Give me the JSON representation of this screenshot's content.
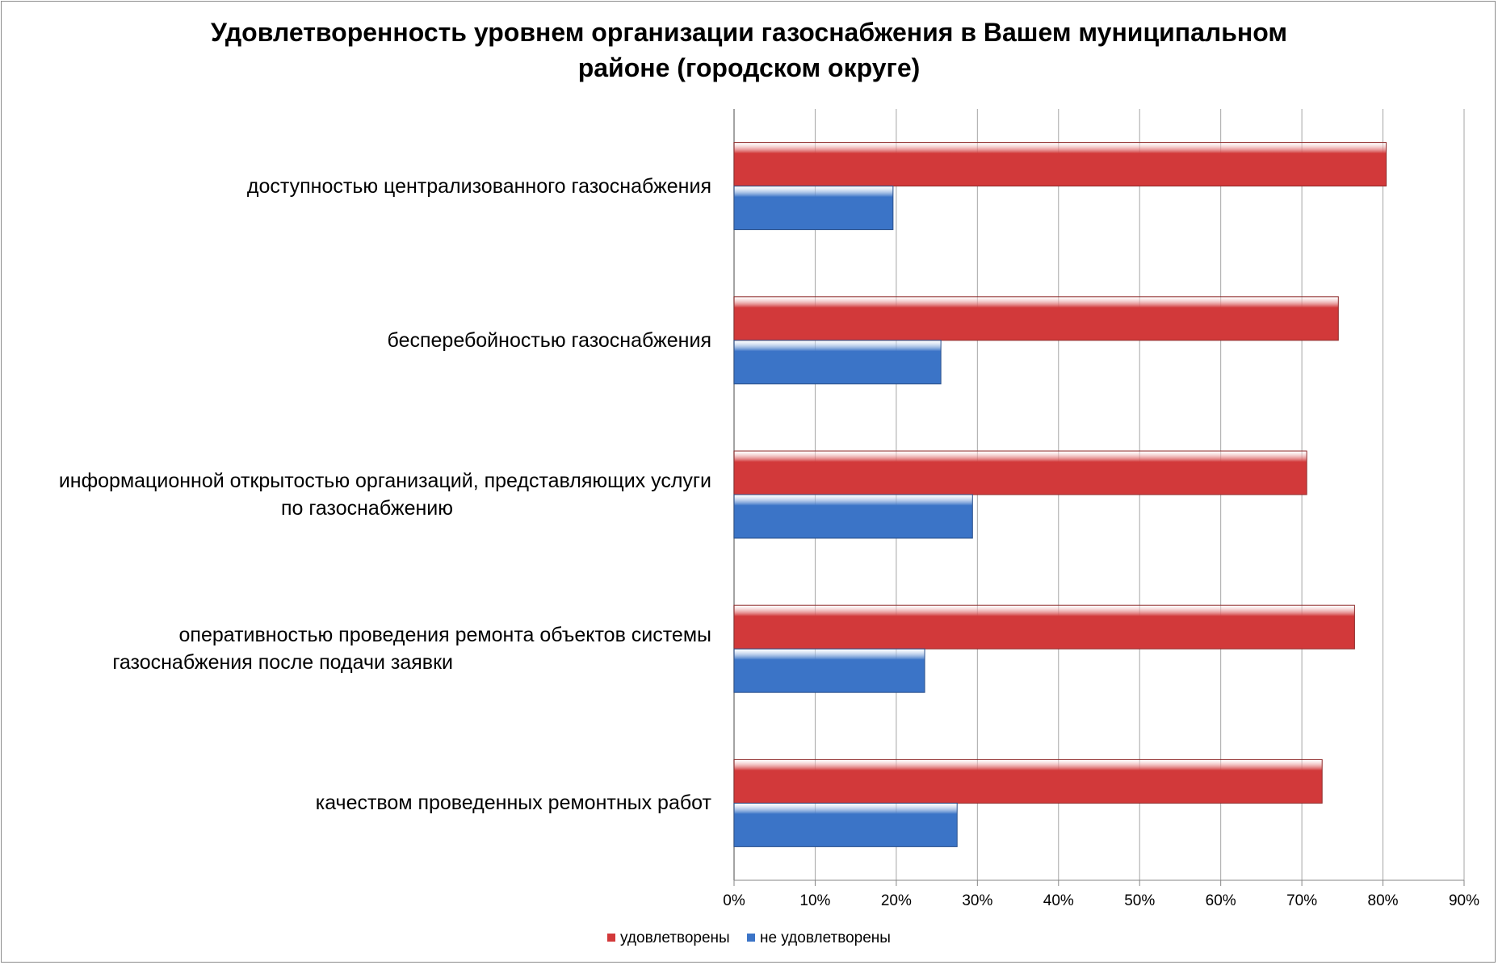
{
  "chart_data": {
    "type": "bar",
    "orientation": "horizontal",
    "title_lines": [
      "Удовлетворенность уровнем организации газоснабжения в Вашем муниципальном",
      "районе (городском округе)"
    ],
    "categories": [
      [
        "доступностью централизованного газоснабжения"
      ],
      [
        "бесперебойностью  газоснабжения"
      ],
      [
        "информационной открытостью организаций, представляющих услуги",
        "по газоснабжению"
      ],
      [
        "оперативностью проведения ремонта объектов системы",
        "газоснабжения после подачи заявки"
      ],
      [
        "качеством проведенных ремонтных работ"
      ]
    ],
    "series": [
      {
        "name": "удовлетворены",
        "color": "#d2393a",
        "values": [
          80.4,
          74.5,
          70.6,
          76.5,
          72.5
        ]
      },
      {
        "name": "не удовлетворены",
        "color": "#3b74c7",
        "values": [
          19.6,
          25.5,
          29.4,
          23.5,
          27.5
        ]
      }
    ],
    "xlim": [
      0,
      90
    ],
    "x_ticks": [
      "0%",
      "10%",
      "20%",
      "30%",
      "40%",
      "50%",
      "60%",
      "70%",
      "80%",
      "90%"
    ],
    "x_tick_step": 10,
    "grid": true,
    "legend_position": "bottom"
  }
}
